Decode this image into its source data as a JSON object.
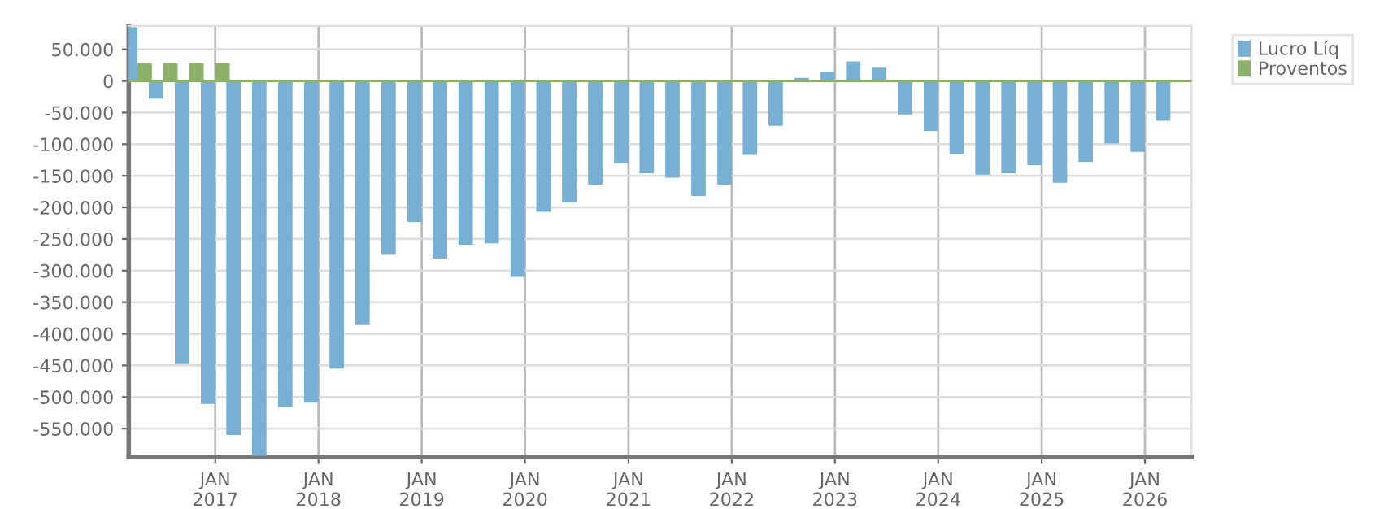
{
  "chart_data": {
    "type": "bar",
    "x": [
      "2016-04",
      "2016-07",
      "2016-10",
      "2017-01",
      "2017-04",
      "2017-07",
      "2017-10",
      "2018-01",
      "2018-04",
      "2018-07",
      "2018-10",
      "2019-01",
      "2019-04",
      "2019-07",
      "2019-10",
      "2020-01",
      "2020-04",
      "2020-07",
      "2020-10",
      "2021-01",
      "2021-04",
      "2021-07",
      "2021-10",
      "2022-01",
      "2022-04",
      "2022-07",
      "2022-10",
      "2023-01",
      "2023-04",
      "2023-07",
      "2023-10",
      "2024-01",
      "2024-04",
      "2024-07",
      "2024-10",
      "2025-01",
      "2025-04",
      "2025-07",
      "2025-10",
      "2026-01",
      "2026-04"
    ],
    "series": [
      {
        "name": "Lucro Líq",
        "color": "#77b0d4",
        "values": [
          85000,
          -28000,
          -448000,
          -511000,
          -560000,
          -593000,
          -516000,
          -509000,
          -455000,
          -386000,
          -274000,
          -223000,
          -281000,
          -259000,
          -257000,
          -310000,
          -207000,
          -192000,
          -164000,
          -130000,
          -146000,
          -153000,
          -182000,
          -164000,
          -117000,
          -71000,
          5000,
          15000,
          31000,
          21000,
          -53000,
          -79000,
          -115000,
          -148000,
          -146000,
          -133000,
          -161000,
          -128000,
          -99000,
          -112000,
          -63000
        ]
      },
      {
        "name": "Proventos",
        "color": "#8ab06a",
        "values": [
          28000,
          28000,
          28000,
          28000,
          null,
          null,
          null,
          null,
          null,
          null,
          null,
          null,
          null,
          null,
          null,
          null,
          null,
          null,
          null,
          null,
          null,
          null,
          null,
          null,
          null,
          null,
          null,
          null,
          null,
          null,
          null,
          null,
          null,
          null,
          null,
          null,
          null,
          null,
          null,
          null,
          null
        ]
      }
    ],
    "xlim": [
      "2016-03-01",
      "2026-06-15"
    ],
    "xticks": [
      {
        "value": "2017-01-01",
        "label": "JAN\n2017"
      },
      {
        "value": "2018-01-01",
        "label": "JAN\n2018"
      },
      {
        "value": "2019-01-01",
        "label": "JAN\n2019"
      },
      {
        "value": "2020-01-01",
        "label": "JAN\n2020"
      },
      {
        "value": "2021-01-01",
        "label": "JAN\n2021"
      },
      {
        "value": "2022-01-01",
        "label": "JAN\n2022"
      },
      {
        "value": "2023-01-01",
        "label": "JAN\n2023"
      },
      {
        "value": "2024-01-01",
        "label": "JAN\n2024"
      },
      {
        "value": "2025-01-01",
        "label": "JAN\n2025"
      },
      {
        "value": "2026-01-01",
        "label": "JAN\n2026"
      }
    ],
    "ylim": [
      -595000,
      87000
    ],
    "yticks": [
      {
        "value": 50000,
        "label": "50.000"
      },
      0,
      {
        "value": -50000,
        "label": "-50.000"
      },
      {
        "value": -100000,
        "label": "-100.000"
      },
      {
        "value": -150000,
        "label": "-150.000"
      },
      {
        "value": -200000,
        "label": "-200.000"
      },
      {
        "value": -250000,
        "label": "-250.000"
      },
      {
        "value": -300000,
        "label": "-300.000"
      },
      {
        "value": -350000,
        "label": "-350.000"
      },
      {
        "value": -400000,
        "label": "-400.000"
      },
      {
        "value": -450000,
        "label": "-450.000"
      },
      {
        "value": -500000,
        "label": "-500.000"
      },
      {
        "value": -550000,
        "label": "-550.000"
      }
    ],
    "ref_lines": [
      {
        "axis": "y",
        "value": 0,
        "color": "#8ab06a"
      }
    ],
    "grid": true,
    "legend": "top right"
  }
}
